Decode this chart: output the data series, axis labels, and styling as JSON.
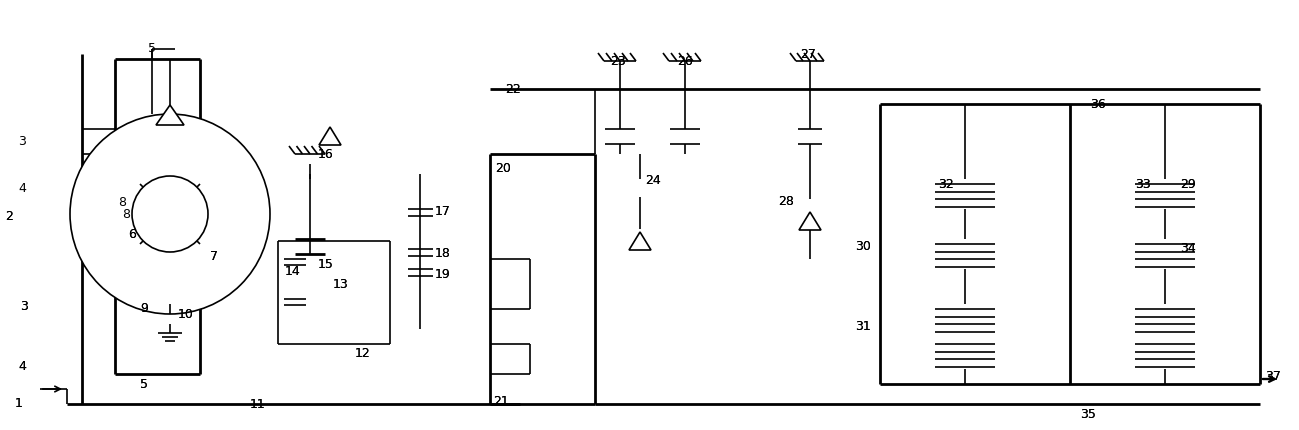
{
  "bg_color": "#ffffff",
  "line_color": "#000000",
  "lw": 1.2,
  "tlw": 2.0,
  "fig_width": 12.99,
  "fig_height": 4.31
}
